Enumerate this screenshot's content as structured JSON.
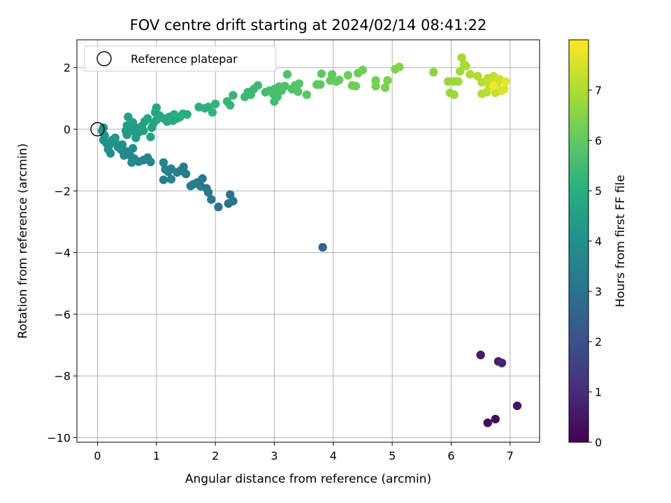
{
  "chart_data": {
    "type": "scatter",
    "title": "FOV centre drift starting at 2024/02/14 08:41:22",
    "xlabel": "Angular distance from reference (arcmin)",
    "ylabel": "Rotation from reference (arcmin)",
    "xlim": [
      -0.35,
      7.5
    ],
    "ylim": [
      -10.15,
      2.9
    ],
    "xticks": [
      0,
      1,
      2,
      3,
      4,
      5,
      6,
      7
    ],
    "yticks": [
      2,
      0,
      -2,
      -4,
      -6,
      -8,
      -10
    ],
    "grid": true,
    "legend": {
      "label": "Reference platepar",
      "position": "top-left",
      "marker": "open-circle"
    },
    "reference_point": {
      "x": 0,
      "y": 0
    },
    "colorbar": {
      "label": "Hours from first FF file",
      "colormap": "viridis",
      "range": [
        0,
        8
      ],
      "ticks": [
        0,
        1,
        2,
        3,
        4,
        5,
        6,
        7
      ]
    },
    "points": [
      {
        "x": 6.62,
        "y": -9.52,
        "c": 0.2
      },
      {
        "x": 6.75,
        "y": -9.4,
        "c": 0.3
      },
      {
        "x": 7.12,
        "y": -8.97,
        "c": 0.4
      },
      {
        "x": 6.5,
        "y": -7.32,
        "c": 0.6
      },
      {
        "x": 6.8,
        "y": -7.53,
        "c": 0.7
      },
      {
        "x": 6.86,
        "y": -7.58,
        "c": 0.8
      },
      {
        "x": 3.82,
        "y": -3.83,
        "c": 2.5
      },
      {
        "x": 2.05,
        "y": -2.52,
        "c": 3.0
      },
      {
        "x": 2.22,
        "y": -2.41,
        "c": 3.0
      },
      {
        "x": 2.3,
        "y": -2.33,
        "c": 3.05
      },
      {
        "x": 2.25,
        "y": -2.12,
        "c": 3.1
      },
      {
        "x": 1.93,
        "y": -2.28,
        "c": 3.1
      },
      {
        "x": 1.88,
        "y": -2.05,
        "c": 3.15
      },
      {
        "x": 1.85,
        "y": -1.92,
        "c": 3.2
      },
      {
        "x": 1.75,
        "y": -1.85,
        "c": 3.2
      },
      {
        "x": 1.78,
        "y": -1.6,
        "c": 3.25
      },
      {
        "x": 1.7,
        "y": -1.72,
        "c": 3.25
      },
      {
        "x": 1.63,
        "y": -1.78,
        "c": 3.3
      },
      {
        "x": 1.58,
        "y": -1.84,
        "c": 3.3
      },
      {
        "x": 1.5,
        "y": -1.45,
        "c": 3.35
      },
      {
        "x": 1.46,
        "y": -1.22,
        "c": 3.35
      },
      {
        "x": 1.4,
        "y": -1.35,
        "c": 3.4
      },
      {
        "x": 1.35,
        "y": -1.4,
        "c": 3.4
      },
      {
        "x": 1.25,
        "y": -1.62,
        "c": 3.45
      },
      {
        "x": 1.12,
        "y": -1.64,
        "c": 3.45
      },
      {
        "x": 1.2,
        "y": -1.38,
        "c": 3.5
      },
      {
        "x": 1.15,
        "y": -1.3,
        "c": 3.5
      },
      {
        "x": 1.12,
        "y": -1.08,
        "c": 3.55
      },
      {
        "x": 1.25,
        "y": -1.28,
        "c": 3.55
      },
      {
        "x": 0.9,
        "y": -1.06,
        "c": 3.6
      },
      {
        "x": 0.85,
        "y": -0.92,
        "c": 3.6
      },
      {
        "x": 0.78,
        "y": -1.0,
        "c": 3.65
      },
      {
        "x": 0.7,
        "y": -1.05,
        "c": 3.65
      },
      {
        "x": 0.62,
        "y": -0.95,
        "c": 3.7
      },
      {
        "x": 0.58,
        "y": -1.08,
        "c": 3.7
      },
      {
        "x": 0.55,
        "y": -0.85,
        "c": 3.75
      },
      {
        "x": 0.5,
        "y": -0.72,
        "c": 3.75
      },
      {
        "x": 0.45,
        "y": -0.85,
        "c": 3.8
      },
      {
        "x": 0.4,
        "y": -0.66,
        "c": 3.8
      },
      {
        "x": 0.35,
        "y": -0.58,
        "c": 3.85
      },
      {
        "x": 0.6,
        "y": -0.62,
        "c": 3.85
      },
      {
        "x": 0.42,
        "y": -0.5,
        "c": 3.9
      },
      {
        "x": 0.3,
        "y": -0.42,
        "c": 3.9
      },
      {
        "x": 0.25,
        "y": -0.35,
        "c": 3.95
      },
      {
        "x": 0.2,
        "y": -0.52,
        "c": 3.95
      },
      {
        "x": 0.18,
        "y": -0.65,
        "c": 4.0
      },
      {
        "x": 0.22,
        "y": -0.78,
        "c": 4.0
      },
      {
        "x": 0.15,
        "y": -0.45,
        "c": 4.05
      },
      {
        "x": 0.1,
        "y": -0.35,
        "c": 4.05
      },
      {
        "x": 0.12,
        "y": -0.2,
        "c": 4.1
      },
      {
        "x": 0.08,
        "y": -0.05,
        "c": 4.1
      },
      {
        "x": 0.1,
        "y": 0.05,
        "c": 4.15
      },
      {
        "x": 0.3,
        "y": -0.28,
        "c": 4.2
      },
      {
        "x": 0.5,
        "y": -0.18,
        "c": 4.25
      },
      {
        "x": 0.6,
        "y": -0.05,
        "c": 4.3
      },
      {
        "x": 0.48,
        "y": -0.05,
        "c": 4.3
      },
      {
        "x": 0.55,
        "y": 0.1,
        "c": 4.35
      },
      {
        "x": 0.65,
        "y": 0.05,
        "c": 4.35
      },
      {
        "x": 0.7,
        "y": -0.1,
        "c": 4.4
      },
      {
        "x": 0.65,
        "y": -0.28,
        "c": 4.4
      },
      {
        "x": 0.5,
        "y": 0.12,
        "c": 4.45
      },
      {
        "x": 0.52,
        "y": 0.4,
        "c": 4.45
      },
      {
        "x": 0.6,
        "y": 0.22,
        "c": 4.5
      },
      {
        "x": 0.75,
        "y": 0.1,
        "c": 4.5
      },
      {
        "x": 0.8,
        "y": 0.25,
        "c": 4.55
      },
      {
        "x": 0.78,
        "y": -0.05,
        "c": 4.55
      },
      {
        "x": 0.9,
        "y": -0.25,
        "c": 4.6
      },
      {
        "x": 0.92,
        "y": 0.05,
        "c": 4.6
      },
      {
        "x": 0.85,
        "y": 0.35,
        "c": 4.65
      },
      {
        "x": 0.95,
        "y": 0.2,
        "c": 4.65
      },
      {
        "x": 1.0,
        "y": 0.3,
        "c": 4.7
      },
      {
        "x": 0.98,
        "y": 0.55,
        "c": 4.7
      },
      {
        "x": 1.0,
        "y": 0.7,
        "c": 4.75
      },
      {
        "x": 1.05,
        "y": 0.45,
        "c": 4.75
      },
      {
        "x": 1.12,
        "y": 0.35,
        "c": 4.8
      },
      {
        "x": 1.18,
        "y": 0.25,
        "c": 4.8
      },
      {
        "x": 1.22,
        "y": 0.4,
        "c": 4.85
      },
      {
        "x": 1.28,
        "y": 0.28,
        "c": 4.85
      },
      {
        "x": 1.3,
        "y": 0.48,
        "c": 4.9
      },
      {
        "x": 1.35,
        "y": 0.35,
        "c": 4.9
      },
      {
        "x": 1.4,
        "y": 0.4,
        "c": 4.95
      },
      {
        "x": 1.45,
        "y": 0.5,
        "c": 4.95
      },
      {
        "x": 1.52,
        "y": 0.48,
        "c": 5.0
      },
      {
        "x": 1.72,
        "y": 0.72,
        "c": 5.05
      },
      {
        "x": 1.82,
        "y": 0.68,
        "c": 5.1
      },
      {
        "x": 1.88,
        "y": 0.72,
        "c": 5.1
      },
      {
        "x": 1.95,
        "y": 0.55,
        "c": 5.15
      },
      {
        "x": 2.0,
        "y": 0.82,
        "c": 5.2
      },
      {
        "x": 2.2,
        "y": 0.9,
        "c": 5.25
      },
      {
        "x": 2.25,
        "y": 0.78,
        "c": 5.25
      },
      {
        "x": 2.3,
        "y": 1.1,
        "c": 5.3
      },
      {
        "x": 2.5,
        "y": 1.05,
        "c": 5.35
      },
      {
        "x": 2.55,
        "y": 1.2,
        "c": 5.35
      },
      {
        "x": 2.6,
        "y": 1.12,
        "c": 5.4
      },
      {
        "x": 2.65,
        "y": 1.3,
        "c": 5.4
      },
      {
        "x": 2.72,
        "y": 1.42,
        "c": 5.45
      },
      {
        "x": 2.85,
        "y": 1.2,
        "c": 5.5
      },
      {
        "x": 2.92,
        "y": 1.25,
        "c": 5.5
      },
      {
        "x": 2.98,
        "y": 1.15,
        "c": 5.55
      },
      {
        "x": 3.0,
        "y": 0.9,
        "c": 5.55
      },
      {
        "x": 3.05,
        "y": 1.05,
        "c": 5.6
      },
      {
        "x": 3.0,
        "y": 1.3,
        "c": 5.6
      },
      {
        "x": 3.08,
        "y": 1.38,
        "c": 5.65
      },
      {
        "x": 3.12,
        "y": 1.25,
        "c": 5.65
      },
      {
        "x": 3.18,
        "y": 1.4,
        "c": 5.7
      },
      {
        "x": 3.22,
        "y": 1.78,
        "c": 5.75
      },
      {
        "x": 3.3,
        "y": 1.3,
        "c": 5.75
      },
      {
        "x": 3.35,
        "y": 1.42,
        "c": 5.8
      },
      {
        "x": 3.4,
        "y": 1.22,
        "c": 5.8
      },
      {
        "x": 3.42,
        "y": 1.48,
        "c": 5.85
      },
      {
        "x": 3.55,
        "y": 1.12,
        "c": 5.9
      },
      {
        "x": 3.72,
        "y": 1.45,
        "c": 5.95
      },
      {
        "x": 3.8,
        "y": 1.8,
        "c": 6.0
      },
      {
        "x": 3.78,
        "y": 1.45,
        "c": 6.0
      },
      {
        "x": 3.95,
        "y": 1.58,
        "c": 6.05
      },
      {
        "x": 3.98,
        "y": 1.78,
        "c": 6.05
      },
      {
        "x": 4.05,
        "y": 1.55,
        "c": 6.1
      },
      {
        "x": 4.1,
        "y": 1.6,
        "c": 6.1
      },
      {
        "x": 4.25,
        "y": 1.75,
        "c": 6.15
      },
      {
        "x": 4.32,
        "y": 1.42,
        "c": 6.15
      },
      {
        "x": 4.38,
        "y": 1.4,
        "c": 6.2
      },
      {
        "x": 4.42,
        "y": 1.82,
        "c": 6.2
      },
      {
        "x": 4.5,
        "y": 1.92,
        "c": 6.25
      },
      {
        "x": 4.72,
        "y": 1.58,
        "c": 6.3
      },
      {
        "x": 4.72,
        "y": 1.4,
        "c": 6.3
      },
      {
        "x": 4.88,
        "y": 1.35,
        "c": 6.35
      },
      {
        "x": 4.92,
        "y": 1.58,
        "c": 6.35
      },
      {
        "x": 5.05,
        "y": 1.95,
        "c": 6.4
      },
      {
        "x": 5.12,
        "y": 2.02,
        "c": 6.45
      },
      {
        "x": 5.7,
        "y": 1.85,
        "c": 6.6
      },
      {
        "x": 5.95,
        "y": 1.55,
        "c": 6.75
      },
      {
        "x": 5.98,
        "y": 1.18,
        "c": 6.75
      },
      {
        "x": 6.05,
        "y": 1.55,
        "c": 6.8
      },
      {
        "x": 6.05,
        "y": 1.12,
        "c": 6.8
      },
      {
        "x": 6.12,
        "y": 1.55,
        "c": 6.85
      },
      {
        "x": 6.15,
        "y": 1.88,
        "c": 6.85
      },
      {
        "x": 6.18,
        "y": 2.32,
        "c": 6.9
      },
      {
        "x": 6.22,
        "y": 2.1,
        "c": 6.9
      },
      {
        "x": 6.25,
        "y": 2.05,
        "c": 6.95
      },
      {
        "x": 6.32,
        "y": 1.78,
        "c": 7.0
      },
      {
        "x": 6.45,
        "y": 1.72,
        "c": 7.05
      },
      {
        "x": 6.52,
        "y": 1.52,
        "c": 7.1
      },
      {
        "x": 6.52,
        "y": 1.15,
        "c": 7.1
      },
      {
        "x": 6.6,
        "y": 1.2,
        "c": 7.15
      },
      {
        "x": 6.62,
        "y": 1.65,
        "c": 7.15
      },
      {
        "x": 6.65,
        "y": 1.4,
        "c": 7.2
      },
      {
        "x": 6.7,
        "y": 1.55,
        "c": 7.25
      },
      {
        "x": 6.72,
        "y": 1.72,
        "c": 7.25
      },
      {
        "x": 6.75,
        "y": 1.18,
        "c": 7.3
      },
      {
        "x": 6.78,
        "y": 1.48,
        "c": 7.35
      },
      {
        "x": 6.82,
        "y": 1.62,
        "c": 7.4
      },
      {
        "x": 6.85,
        "y": 1.25,
        "c": 7.5
      },
      {
        "x": 6.9,
        "y": 1.3,
        "c": 7.6
      },
      {
        "x": 6.92,
        "y": 1.55,
        "c": 7.7
      },
      {
        "x": 6.72,
        "y": 1.42,
        "c": 7.9
      }
    ]
  }
}
